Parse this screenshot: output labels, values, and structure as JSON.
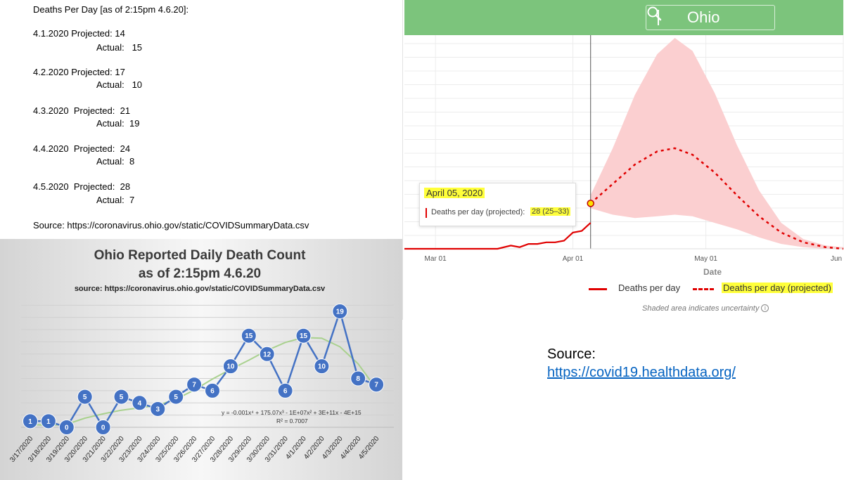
{
  "notes": {
    "header": "Deaths Per Day [as of 2:15pm 4.6.20]:",
    "entries": [
      {
        "projected": "4.1.2020 Projected: 14",
        "actual": "Actual:   15"
      },
      {
        "projected": "4.2.2020 Projected: 17",
        "actual": "Actual:   10"
      },
      {
        "projected": "4.3.2020  Projected:  21",
        "actual": "Actual:  19"
      },
      {
        "projected": "4.4.2020  Projected:  24",
        "actual": "Actual:  8"
      },
      {
        "projected": "4.5.2020  Projected:  28",
        "actual": "Actual:  7"
      }
    ],
    "source": "Source: https://coronavirus.ohio.gov/static/COVIDSummaryData.csv"
  },
  "search": {
    "value": "Ohio",
    "icon": "search-icon"
  },
  "tooltip": {
    "date": "April 05, 2020",
    "label": "Deaths per day (projected):",
    "value": "28 (25–33)"
  },
  "legend": {
    "actual": "Deaths per day",
    "projected": "Deaths per day (projected)",
    "note": "Shaded area indicates uncertainty"
  },
  "source_block": {
    "label": "Source:",
    "link": "https://covid19.healthdata.org/"
  },
  "colors": {
    "header_bar": "#7cc47c",
    "deaths_line": "#e00000",
    "uncertainty_band": "#fbcfd0",
    "highlight": "#ffff3a",
    "marker": "#4472c4",
    "trendline": "#a9d18e",
    "link": "#0563c1"
  },
  "chart_data": [
    {
      "type": "line",
      "title": "Ohio Reported Daily Death Count",
      "title_line2": "as of 2:15pm 4.6.20",
      "subtitle": "source:  https://coronavirus.ohio.gov/static/COVIDSummaryData.csv",
      "xlabel": "",
      "ylabel": "",
      "ylim": [
        0,
        20
      ],
      "grid": true,
      "legend": "none",
      "categories": [
        "3/17/2020",
        "3/18/2020",
        "3/19/2020",
        "3/20/2020",
        "3/21/2020",
        "3/22/2020",
        "3/23/2020",
        "3/24/2020",
        "3/25/2020",
        "3/26/2020",
        "3/27/2020",
        "3/28/2020",
        "3/29/2020",
        "3/30/2020",
        "3/31/2020",
        "4/1/2020",
        "4/2/2020",
        "4/3/2020",
        "4/4/2020",
        "4/5/2020"
      ],
      "series": [
        {
          "values": [
            1,
            1,
            0,
            5,
            0,
            5,
            4,
            3,
            5,
            7,
            6,
            10,
            15,
            12,
            6,
            15,
            10,
            19,
            8,
            7
          ]
        }
      ],
      "trendline": {
        "type": "polynomial",
        "equation": "y = -0.001x⁴ + 175.07x³ - 1E+07x² + 3E+11x - 4E+15",
        "r2": "R² = 0.7007",
        "approx_values": [
          0.5,
          0.3,
          0.5,
          1.5,
          2.2,
          2.8,
          3.2,
          3.6,
          4.6,
          6.1,
          7.9,
          9.5,
          11,
          12.6,
          13.9,
          14.7,
          14.6,
          13.2,
          10.4,
          6.3
        ]
      }
    },
    {
      "type": "line",
      "title": "",
      "xlabel": "Date",
      "ylabel": "",
      "x_ticks": [
        "Mar 01",
        "Apr 01",
        "May 01",
        "Jun"
      ],
      "x_range": [
        "2020-02-23",
        "2020-06-01"
      ],
      "y_range": [
        0,
        100
      ],
      "grid": true,
      "legend": "bottom-right",
      "series": [
        {
          "name": "Deaths per day",
          "style": "solid",
          "x": [
            "2020-03-15",
            "2020-03-18",
            "2020-03-20",
            "2020-03-22",
            "2020-03-24",
            "2020-03-26",
            "2020-03-28",
            "2020-03-30",
            "2020-04-01",
            "2020-04-03",
            "2020-04-05"
          ],
          "y": [
            0,
            2,
            1,
            3,
            3,
            4,
            4,
            5,
            10,
            11,
            16
          ]
        },
        {
          "name": "Deaths per day (projected)",
          "style": "dashed",
          "x": [
            "2020-04-05",
            "2020-04-10",
            "2020-04-15",
            "2020-04-20",
            "2020-04-24",
            "2020-04-28",
            "2020-05-03",
            "2020-05-08",
            "2020-05-13",
            "2020-05-18",
            "2020-05-23",
            "2020-05-28",
            "2020-06-01"
          ],
          "y": [
            28,
            40,
            52,
            60,
            62,
            58,
            47,
            33,
            20,
            10,
            4,
            1,
            0
          ]
        }
      ],
      "uncertainty_band": {
        "x": [
          "2020-04-05",
          "2020-04-10",
          "2020-04-15",
          "2020-04-20",
          "2020-04-24",
          "2020-04-28",
          "2020-05-03",
          "2020-05-08",
          "2020-05-13",
          "2020-05-18",
          "2020-05-23",
          "2020-05-28",
          "2020-06-01"
        ],
        "lower": [
          25,
          21,
          19,
          20,
          21,
          20,
          16,
          12,
          7,
          3,
          1,
          0,
          0
        ],
        "upper": [
          33,
          62,
          95,
          120,
          130,
          122,
          96,
          64,
          36,
          16,
          6,
          2,
          1
        ]
      },
      "highlight_date": "2020-04-05"
    }
  ]
}
